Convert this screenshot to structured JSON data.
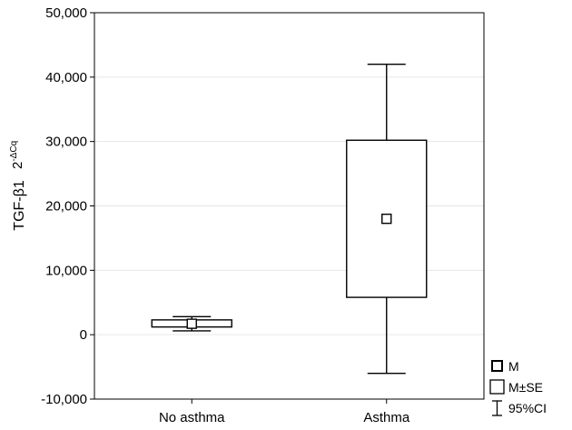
{
  "chart_data": {
    "type": "box",
    "ylabel": "TGF-β1",
    "ylabel_unit_base": "2",
    "ylabel_unit_exp": "-ΔCq",
    "ylim": [
      -10000,
      50000
    ],
    "yticks": [
      -10000,
      0,
      10000,
      20000,
      30000,
      40000,
      50000
    ],
    "ytick_labels": [
      "-10,000",
      "0",
      "10,000",
      "20,000",
      "30,000",
      "40,000",
      "50,000"
    ],
    "categories": [
      "No asthma",
      "Asthma"
    ],
    "groups": [
      {
        "category": "No asthma",
        "mean": 1700,
        "se_low": 1200,
        "se_high": 2300,
        "ci_low": 600,
        "ci_high": 2800
      },
      {
        "category": "Asthma",
        "mean": 18000,
        "se_low": 5800,
        "se_high": 30200,
        "ci_low": -6000,
        "ci_high": 42000
      }
    ],
    "grid": true,
    "legend": {
      "position": "bottom-right",
      "entries": [
        {
          "symbol": "mean-marker",
          "label": "M"
        },
        {
          "symbol": "box",
          "label": "M±SE"
        },
        {
          "symbol": "whisker",
          "label": "95%CI"
        }
      ]
    }
  }
}
